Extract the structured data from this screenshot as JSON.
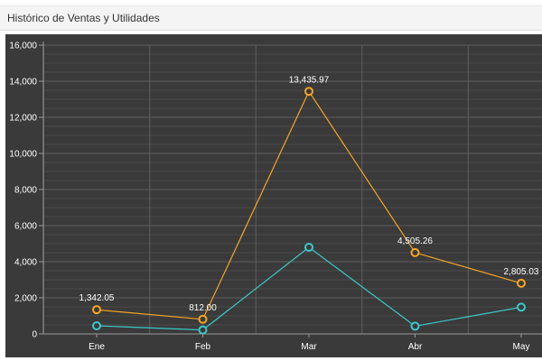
{
  "panel": {
    "title": "Histórico de Ventas y Utilidades"
  },
  "colors": {
    "panel_bg": "#ffffff",
    "header_bg": "#f4f4f4",
    "plot_bg": "#3a3a3a",
    "grid": "#555555",
    "text": "#ffffff",
    "series_ventas": "#f5a623",
    "series_utilidades": "#3cc8c8"
  },
  "chart_data": {
    "type": "line",
    "title": "",
    "xlabel": "",
    "ylabel": "",
    "categories": [
      "Ene",
      "Feb",
      "Mar",
      "Abr",
      "May"
    ],
    "y_ticks": [
      "0",
      "2,000",
      "4,000",
      "6,000",
      "8,000",
      "10,000",
      "12,000",
      "14,000",
      "16,000"
    ],
    "ylim": [
      0,
      16000
    ],
    "grid": true,
    "legend": "none",
    "series": [
      {
        "color": "#f5a623",
        "values": [
          1342.05,
          812.0,
          13435.97,
          4505.26,
          2805.03
        ],
        "labels": [
          "1,342.05",
          "812.00",
          "13,435.97",
          "4,505.26",
          "2,805.03"
        ]
      },
      {
        "color": "#3cc8c8",
        "values": [
          450,
          220,
          4800,
          430,
          1480
        ]
      }
    ]
  }
}
